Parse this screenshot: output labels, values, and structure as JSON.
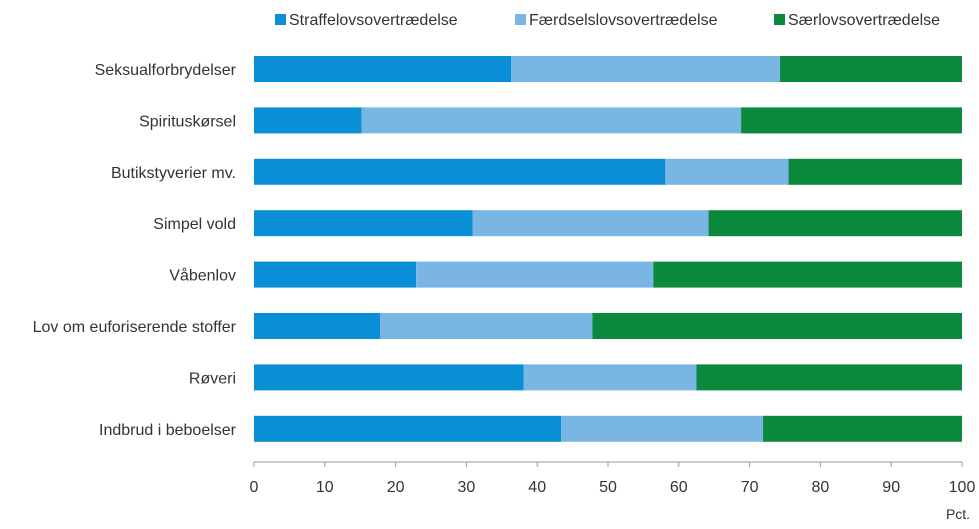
{
  "chart_data": {
    "type": "bar",
    "orientation": "horizontal",
    "stacked": true,
    "categories": [
      "Seksualforbrydelser",
      "Spirituskørsel",
      "Butikstyverier mv.",
      "Simpel vold",
      "Våbenlov",
      "Lov om euforiserende stoffer",
      "Røveri",
      "Indbrud i beboelser"
    ],
    "series": [
      {
        "name": "Straffelovsovertrædelse",
        "color": "#0a8fd6",
        "values": [
          36.3,
          15.2,
          58.1,
          30.9,
          22.9,
          17.8,
          38.1,
          43.4
        ]
      },
      {
        "name": "Færdselslovsovertrædelse",
        "color": "#7ab6e4",
        "values": [
          38.0,
          53.6,
          17.4,
          33.3,
          33.5,
          30.0,
          24.4,
          28.5
        ]
      },
      {
        "name": "Særlovsovertrædelse",
        "color": "#0b8a3e",
        "values": [
          25.7,
          31.2,
          24.5,
          35.8,
          43.6,
          52.2,
          37.5,
          28.1
        ]
      }
    ],
    "x_ticks": [
      "0",
      "10",
      "20",
      "30",
      "40",
      "50",
      "60",
      "70",
      "80",
      "90",
      "100"
    ],
    "xlim": [
      0,
      100
    ],
    "x_unit": "Pct.",
    "legend_position": "top",
    "grid": false
  }
}
